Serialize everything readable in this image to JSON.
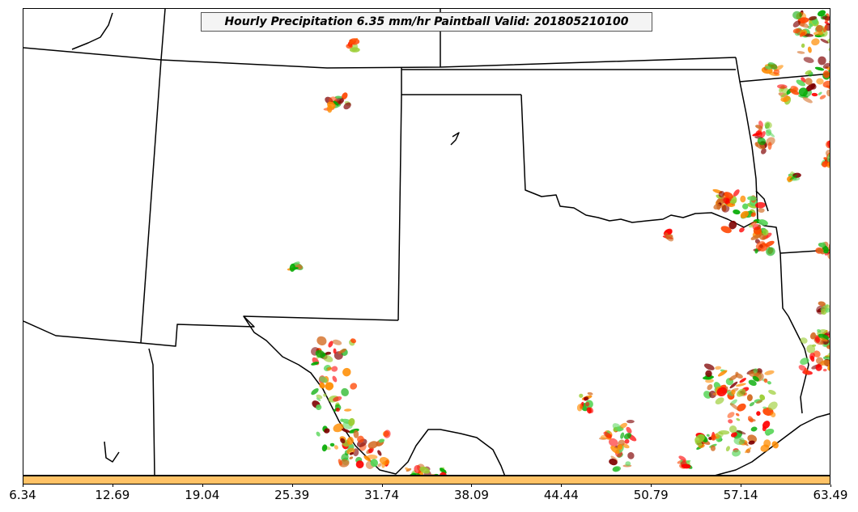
{
  "title": "Hourly Precipitation 6.35 mm/hr Paintball Valid: 201805210100",
  "colorbar": {
    "fill_color": "#ffc266",
    "tick_labels": [
      "6.34",
      "12.69",
      "19.04",
      "25.39",
      "31.74",
      "38.09",
      "44.44",
      "50.79",
      "57.14",
      "63.49"
    ]
  },
  "paintball_colors": [
    "#ff0000",
    "#ff8c00",
    "#7f0000",
    "#00aa00",
    "#5ad65a",
    "#9acd32",
    "#d2691e",
    "#ff4500"
  ],
  "map": {
    "region": "Southern Plains (Texas, Oklahoma, New Mexico)",
    "border_color": "#000000",
    "background": "#ffffff"
  }
}
